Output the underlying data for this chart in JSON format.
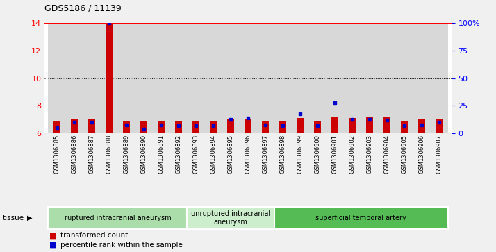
{
  "title": "GDS5186 / 11139",
  "samples": [
    "GSM1306885",
    "GSM1306886",
    "GSM1306887",
    "GSM1306888",
    "GSM1306889",
    "GSM1306890",
    "GSM1306891",
    "GSM1306892",
    "GSM1306893",
    "GSM1306894",
    "GSM1306895",
    "GSM1306896",
    "GSM1306897",
    "GSM1306898",
    "GSM1306899",
    "GSM1306900",
    "GSM1306901",
    "GSM1306902",
    "GSM1306903",
    "GSM1306904",
    "GSM1306905",
    "GSM1306906",
    "GSM1306907"
  ],
  "red_values": [
    6.9,
    7.0,
    7.0,
    13.9,
    6.9,
    6.9,
    6.9,
    6.9,
    6.9,
    6.9,
    7.0,
    7.05,
    6.9,
    6.9,
    7.1,
    6.9,
    7.2,
    7.1,
    7.2,
    7.2,
    6.9,
    7.0,
    7.0
  ],
  "blue_pct": [
    5,
    10,
    10,
    100,
    8,
    4,
    8,
    7,
    7,
    7,
    13,
    14,
    8,
    7,
    18,
    7,
    28,
    13,
    13,
    12,
    7,
    8,
    10
  ],
  "tissue_groups": [
    {
      "label": "ruptured intracranial aneurysm",
      "start": 0,
      "end": 8,
      "color": "#aaddaa"
    },
    {
      "label": "unruptured intracranial\naneurysm",
      "start": 8,
      "end": 13,
      "color": "#cceecc"
    },
    {
      "label": "superficial temporal artery",
      "start": 13,
      "end": 23,
      "color": "#55bb55"
    }
  ],
  "ylim_left": [
    6,
    14
  ],
  "ylim_right": [
    0,
    100
  ],
  "yticks_left": [
    6,
    8,
    10,
    12,
    14
  ],
  "yticks_right": [
    0,
    25,
    50,
    75,
    100
  ],
  "bar_color": "#cc0000",
  "marker_color": "#0000cc",
  "col_bg": "#d8d8d8",
  "fig_bg": "#f0f0f0",
  "plot_bg": "#ffffff",
  "tissue_label": "tissue"
}
